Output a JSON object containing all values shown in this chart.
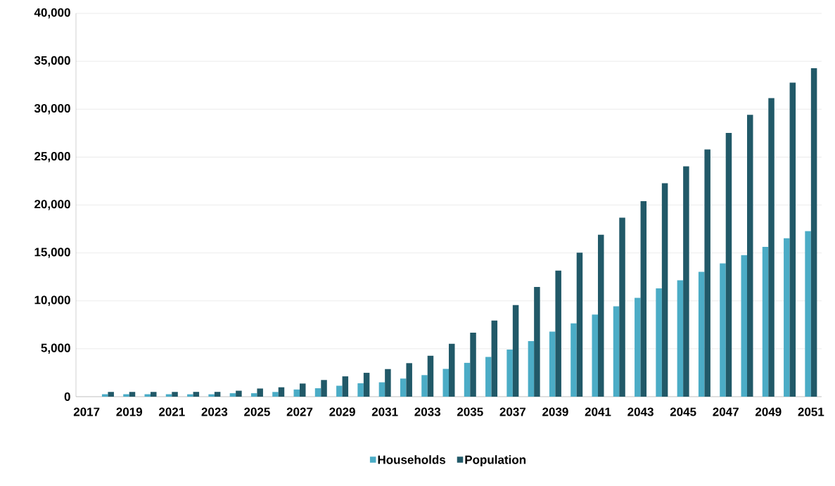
{
  "chart_data": {
    "type": "bar",
    "categories": [
      "2017",
      null,
      "2019",
      null,
      "2021",
      null,
      "2023",
      null,
      "2025",
      null,
      "2027",
      null,
      "2029",
      null,
      "2031",
      null,
      "2033",
      null,
      "2035",
      null,
      "2037",
      null,
      "2039",
      null,
      "2041",
      null,
      "2043",
      null,
      "2045",
      null,
      "2047",
      null,
      "2049",
      null,
      "2051"
    ],
    "series": [
      {
        "name": "Households",
        "color": "#4bacc6",
        "values": [
          0,
          250,
          250,
          250,
          250,
          250,
          250,
          360,
          360,
          490,
          750,
          880,
          1140,
          1400,
          1500,
          1890,
          2250,
          2900,
          3530,
          4150,
          4920,
          5800,
          6780,
          7650,
          8560,
          9430,
          10310,
          11310,
          12150,
          13020,
          13900,
          14770,
          15640,
          16540,
          17280
        ]
      },
      {
        "name": "Population",
        "color": "#215968",
        "values": [
          0,
          500,
          500,
          500,
          500,
          500,
          500,
          620,
          850,
          980,
          1370,
          1740,
          2120,
          2490,
          2880,
          3500,
          4270,
          5520,
          6680,
          7940,
          9560,
          11440,
          13150,
          15030,
          16900,
          18670,
          20410,
          22280,
          24030,
          25800,
          27520,
          29410,
          31150,
          32770,
          34280
        ]
      }
    ],
    "ylim": [
      0,
      40000
    ],
    "yticks": [
      {
        "value": 0,
        "label": "0"
      },
      {
        "value": 5000,
        "label": "5,000"
      },
      {
        "value": 10000,
        "label": "10,000"
      },
      {
        "value": 15000,
        "label": "15,000"
      },
      {
        "value": 20000,
        "label": "20,000"
      },
      {
        "value": 25000,
        "label": "25,000"
      },
      {
        "value": 30000,
        "label": "30,000"
      },
      {
        "value": 35000,
        "label": "35,000"
      },
      {
        "value": 40000,
        "label": "40,000"
      }
    ],
    "grid": "y",
    "legend": "bottom"
  }
}
